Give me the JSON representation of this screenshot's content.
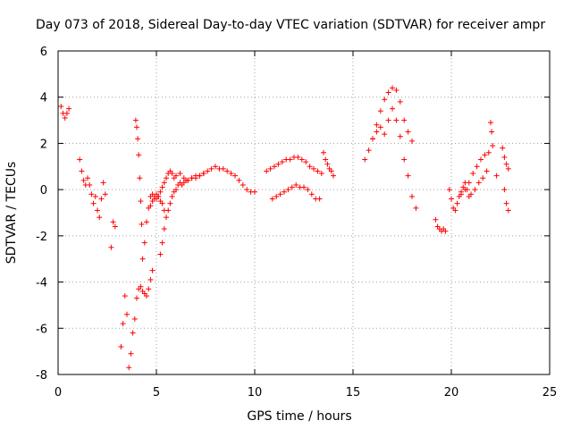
{
  "chart_data": {
    "type": "scatter",
    "title": "Day 073 of 2018, Sidereal Day-to-day VTEC variation (SDTVAR) for receiver ampr",
    "xlabel": "GPS time / hours",
    "ylabel": "SDTVAR / TECUs",
    "xlim": [
      0,
      25
    ],
    "ylim": [
      -8,
      6
    ],
    "xticks": [
      "0",
      "5",
      "10",
      "15",
      "20",
      "25"
    ],
    "yticks": [
      "-8",
      "-6",
      "-4",
      "-2",
      "0",
      "2",
      "4",
      "6"
    ],
    "grid": true,
    "marker": "+",
    "color": "#ff0000",
    "segments": [
      {
        "x": [
          0.15,
          0.25,
          0.35,
          0.45,
          0.55
        ],
        "y": [
          3.6,
          3.3,
          3.1,
          3.3,
          3.5
        ]
      },
      {
        "x": [
          1.1,
          1.2,
          1.3,
          1.4,
          1.5,
          1.6,
          1.7,
          1.8,
          1.9,
          2.0,
          2.1,
          2.2,
          2.3,
          2.4
        ],
        "y": [
          1.3,
          0.8,
          0.4,
          0.2,
          0.5,
          0.2,
          -0.2,
          -0.6,
          -0.3,
          -0.9,
          -1.2,
          -0.4,
          0.3,
          -0.2
        ]
      },
      {
        "x": [
          2.7,
          2.8,
          2.9
        ],
        "y": [
          -2.5,
          -1.4,
          -1.6
        ]
      },
      {
        "x": [
          3.2,
          3.3,
          3.4,
          3.5,
          3.6,
          3.7,
          3.8,
          3.9,
          4.0,
          4.1,
          4.2,
          4.3,
          4.4,
          4.5,
          4.6,
          4.7,
          4.8
        ],
        "y": [
          -6.8,
          -5.8,
          -4.6,
          -5.4,
          -7.7,
          -7.1,
          -6.2,
          -5.6,
          -4.7,
          -4.3,
          -4.2,
          -4.4,
          -4.5,
          -4.6,
          -4.3,
          -3.9,
          -3.5
        ]
      },
      {
        "x": [
          3.95,
          4.0,
          4.05,
          4.1,
          4.15,
          4.2,
          4.25
        ],
        "y": [
          3.0,
          2.7,
          2.2,
          1.5,
          0.5,
          -0.5,
          -1.5
        ]
      },
      {
        "x": [
          4.3,
          4.4,
          4.5,
          4.6,
          4.7,
          4.8,
          4.9,
          5.0,
          5.1,
          5.2,
          5.3,
          5.4
        ],
        "y": [
          -3.0,
          -2.3,
          -1.4,
          -0.8,
          -0.3,
          -0.2,
          -0.4,
          -0.4,
          -0.3,
          -0.5,
          -0.6,
          -0.9
        ]
      },
      {
        "x": [
          4.7,
          4.8,
          4.9,
          5.0,
          5.1,
          5.2,
          5.3,
          5.4,
          5.5,
          5.6,
          5.7,
          5.8,
          5.9,
          6.0,
          6.2,
          6.4,
          6.6,
          6.8,
          7.0,
          7.2,
          7.4,
          7.6,
          7.8,
          8.0,
          8.2,
          8.4,
          8.6,
          8.8,
          9.0,
          9.2,
          9.4,
          9.6,
          9.8,
          10.0
        ],
        "y": [
          -0.7,
          -0.5,
          -0.3,
          -0.2,
          -0.3,
          -0.1,
          0.1,
          0.3,
          0.5,
          0.7,
          0.8,
          0.7,
          0.5,
          0.6,
          0.7,
          0.5,
          0.4,
          0.5,
          0.5,
          0.6,
          0.7,
          0.8,
          0.9,
          1.0,
          0.9,
          0.9,
          0.8,
          0.7,
          0.6,
          0.4,
          0.2,
          0.0,
          -0.1,
          -0.1
        ]
      },
      {
        "x": [
          5.2,
          5.3,
          5.4,
          5.5,
          5.6,
          5.7,
          5.8,
          5.9,
          6.0,
          6.1,
          6.2,
          6.3,
          6.4,
          6.5,
          6.6,
          6.8,
          7.0,
          7.2,
          7.4
        ],
        "y": [
          -2.8,
          -2.3,
          -1.7,
          -1.2,
          -0.9,
          -0.6,
          -0.3,
          -0.1,
          0.0,
          0.2,
          0.3,
          0.2,
          0.3,
          0.4,
          0.4,
          0.5,
          0.6,
          0.6,
          0.7
        ]
      },
      {
        "x": [
          10.6,
          10.8,
          11.0,
          11.2,
          11.4,
          11.6,
          11.8,
          12.0,
          12.2,
          12.4,
          12.6,
          12.8,
          13.0,
          13.2,
          13.4
        ],
        "y": [
          0.8,
          0.9,
          1.0,
          1.1,
          1.2,
          1.3,
          1.3,
          1.4,
          1.4,
          1.3,
          1.2,
          1.0,
          0.9,
          0.8,
          0.7
        ]
      },
      {
        "x": [
          10.9,
          11.1,
          11.3,
          11.5,
          11.7,
          11.9,
          12.1,
          12.3,
          12.5,
          12.7,
          12.9,
          13.1,
          13.3
        ],
        "y": [
          -0.4,
          -0.3,
          -0.2,
          -0.1,
          0.0,
          0.1,
          0.2,
          0.1,
          0.1,
          0.0,
          -0.2,
          -0.4,
          -0.4
        ]
      },
      {
        "x": [
          13.5,
          13.6,
          13.7,
          13.8,
          13.9,
          14.0
        ],
        "y": [
          1.6,
          1.3,
          1.1,
          0.9,
          0.8,
          0.6
        ]
      },
      {
        "x": [
          15.6,
          15.8,
          16.0,
          16.2,
          16.4,
          16.6,
          16.8,
          17.0,
          17.2,
          17.4,
          17.6,
          17.8,
          18.0
        ],
        "y": [
          1.3,
          1.7,
          2.2,
          2.8,
          3.4,
          3.9,
          4.2,
          4.4,
          4.3,
          3.8,
          3.0,
          2.5,
          2.1
        ]
      },
      {
        "x": [
          16.0,
          16.2,
          16.4,
          16.6,
          16.8,
          17.0,
          17.2,
          17.4,
          17.6,
          17.8,
          18.0,
          18.2
        ],
        "y": [
          2.2,
          2.5,
          2.7,
          2.4,
          3.0,
          3.5,
          3.0,
          2.3,
          1.3,
          0.6,
          -0.3,
          -0.8
        ]
      },
      {
        "x": [
          19.2,
          19.3,
          19.4,
          19.5,
          19.6,
          19.7
        ],
        "y": [
          -1.3,
          -1.6,
          -1.7,
          -1.8,
          -1.7,
          -1.8
        ]
      },
      {
        "x": [
          19.9,
          20.0,
          20.1,
          20.2,
          20.3,
          20.4,
          20.5,
          20.6,
          20.7,
          20.8,
          20.9,
          21.0,
          21.2,
          21.4,
          21.6,
          21.8
        ],
        "y": [
          0.0,
          -0.4,
          -0.8,
          -0.9,
          -0.6,
          -0.3,
          -0.1,
          0.1,
          0.3,
          0.0,
          -0.3,
          -0.2,
          0.0,
          0.3,
          0.5,
          0.8
        ]
      },
      {
        "x": [
          20.5,
          20.7,
          20.9,
          21.1,
          21.3,
          21.5,
          21.7,
          21.9
        ],
        "y": [
          -0.2,
          0.0,
          0.3,
          0.7,
          1.0,
          1.3,
          1.5,
          1.6
        ]
      },
      {
        "x": [
          22.0,
          22.05,
          22.1
        ],
        "y": [
          2.9,
          2.5,
          1.9
        ]
      },
      {
        "x": [
          22.3
        ],
        "y": [
          0.6
        ]
      },
      {
        "x": [
          22.6,
          22.7,
          22.8,
          22.9,
          22.7,
          22.8,
          22.9
        ],
        "y": [
          1.8,
          1.4,
          1.1,
          0.9,
          0.0,
          -0.6,
          -0.9
        ]
      }
    ]
  }
}
